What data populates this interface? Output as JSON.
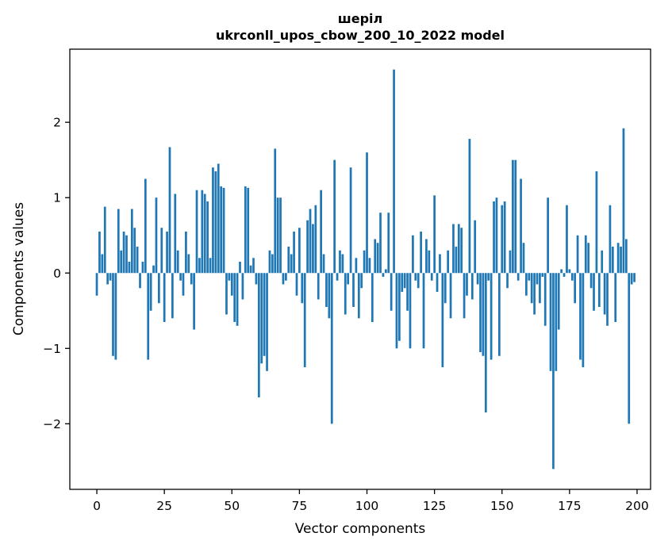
{
  "figure": {
    "title": "шеріл",
    "subtitle": "ukrconll_upos_cbow_200_10_2022 model",
    "xlabel": "Vector components",
    "ylabel": "Components values"
  },
  "chart_data": {
    "type": "bar",
    "title": "шеріл",
    "subtitle": "ukrconll_upos_cbow_200_10_2022 model",
    "xlabel": "Vector components",
    "ylabel": "Components values",
    "bar_color": "#1f77b4",
    "axis_color": "#000000",
    "background": "#ffffff",
    "xlim": [
      -10,
      205
    ],
    "ylim": [
      -2.87,
      2.97
    ],
    "xticks": [
      0,
      25,
      50,
      75,
      100,
      125,
      150,
      175,
      200
    ],
    "yticks": [
      -2,
      -1,
      0,
      1,
      2
    ],
    "grid": false,
    "legend": null,
    "x_start": 0,
    "values": [
      -0.3,
      0.55,
      0.25,
      0.88,
      -0.15,
      -0.1,
      -1.1,
      -1.15,
      0.85,
      0.3,
      0.55,
      0.5,
      0.15,
      0.85,
      0.6,
      0.35,
      -0.2,
      0.15,
      1.25,
      -1.15,
      -0.5,
      0.1,
      1.0,
      -0.4,
      0.6,
      -0.65,
      0.55,
      1.67,
      -0.6,
      1.05,
      0.3,
      -0.1,
      -0.3,
      0.55,
      0.25,
      -0.15,
      -0.75,
      1.1,
      0.2,
      1.1,
      1.05,
      0.95,
      0.2,
      1.4,
      1.35,
      1.45,
      1.15,
      1.13,
      -0.55,
      -0.1,
      -0.3,
      -0.65,
      -0.7,
      0.15,
      -0.35,
      1.15,
      1.13,
      0.1,
      0.2,
      -0.15,
      -1.65,
      -1.2,
      -1.1,
      -1.3,
      0.3,
      0.25,
      1.65,
      1.0,
      1.0,
      -0.15,
      -0.1,
      0.35,
      0.25,
      0.55,
      -0.3,
      0.6,
      -0.4,
      -1.25,
      0.7,
      0.85,
      0.65,
      0.9,
      -0.35,
      1.1,
      0.25,
      -0.45,
      -0.6,
      -2.0,
      1.5,
      -0.1,
      0.3,
      0.25,
      -0.55,
      -0.15,
      1.4,
      -0.45,
      0.2,
      -0.6,
      -0.2,
      0.3,
      1.6,
      0.2,
      -0.65,
      0.45,
      0.4,
      0.8,
      -0.05,
      0.05,
      0.8,
      -0.5,
      2.7,
      -1.0,
      -0.9,
      -0.25,
      -0.2,
      -0.5,
      -1.0,
      0.5,
      -0.1,
      -0.2,
      0.55,
      -1.0,
      0.45,
      0.3,
      -0.1,
      1.03,
      -0.25,
      0.25,
      -1.25,
      -0.4,
      0.3,
      -0.6,
      0.65,
      0.35,
      0.65,
      0.6,
      -0.6,
      -0.3,
      1.78,
      -0.35,
      0.7,
      -0.15,
      -1.05,
      -1.1,
      -1.85,
      -0.1,
      -1.15,
      0.95,
      1.0,
      -1.1,
      0.9,
      0.95,
      -0.2,
      0.3,
      1.5,
      1.5,
      -0.1,
      1.25,
      0.4,
      -0.3,
      -0.1,
      -0.4,
      -0.55,
      -0.15,
      -0.4,
      -0.05,
      -0.7,
      1.0,
      -1.3,
      -2.6,
      -1.3,
      -0.75,
      0.05,
      -0.05,
      0.9,
      0.05,
      -0.1,
      -0.4,
      0.5,
      -1.15,
      -1.25,
      0.5,
      0.4,
      -0.2,
      -0.5,
      1.35,
      -0.45,
      0.3,
      -0.55,
      -0.7,
      0.9,
      0.35,
      -0.65,
      0.4,
      0.35,
      1.92,
      0.45,
      -2.0,
      -0.15,
      -0.12
    ]
  }
}
